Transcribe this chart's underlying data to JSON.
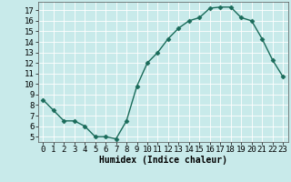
{
  "x": [
    0,
    1,
    2,
    3,
    4,
    5,
    6,
    7,
    8,
    9,
    10,
    11,
    12,
    13,
    14,
    15,
    16,
    17,
    18,
    19,
    20,
    21,
    22,
    23
  ],
  "y": [
    8.5,
    7.5,
    6.5,
    6.5,
    6.0,
    5.0,
    5.0,
    4.8,
    6.5,
    9.8,
    12.0,
    13.0,
    14.3,
    15.3,
    16.0,
    16.3,
    17.2,
    17.3,
    17.3,
    16.3,
    16.0,
    14.3,
    12.3,
    10.7
  ],
  "line_color": "#1a6b5a",
  "marker": "D",
  "markersize": 2.5,
  "linewidth": 1.0,
  "xlabel": "Humidex (Indice chaleur)",
  "bg_color": "#c8eaea",
  "grid_color": "#ffffff",
  "xlim": [
    -0.5,
    23.5
  ],
  "ylim": [
    4.5,
    17.8
  ],
  "xticks": [
    0,
    1,
    2,
    3,
    4,
    5,
    6,
    7,
    8,
    9,
    10,
    11,
    12,
    13,
    14,
    15,
    16,
    17,
    18,
    19,
    20,
    21,
    22,
    23
  ],
  "yticks": [
    5,
    6,
    7,
    8,
    9,
    10,
    11,
    12,
    13,
    14,
    15,
    16,
    17
  ],
  "xlabel_fontsize": 7,
  "tick_fontsize": 6.5
}
